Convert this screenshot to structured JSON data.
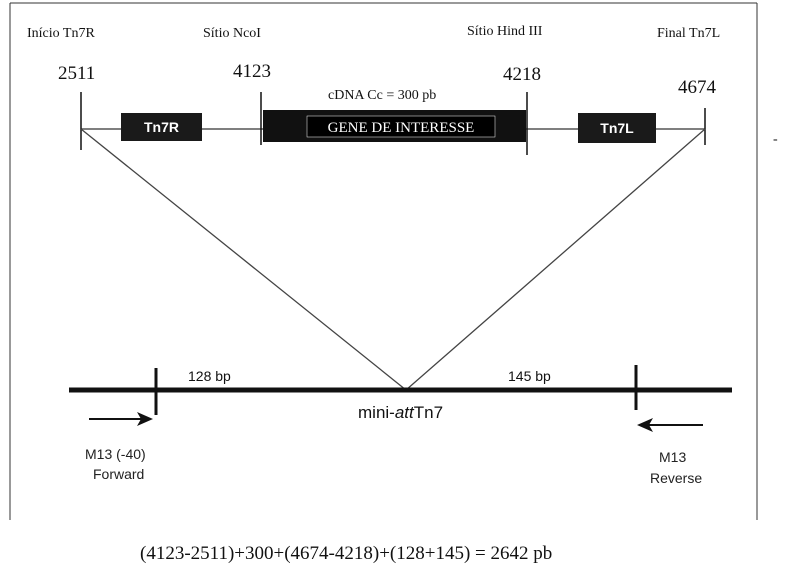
{
  "top_labels": {
    "inicio": "Início Tn7R",
    "ncoi": "Sítio NcoI",
    "hind": "Sítio Hind III",
    "final": "Final Tn7L"
  },
  "positions": {
    "p2511": "2511",
    "p4123": "4123",
    "p4218": "4218",
    "p4674": "4674"
  },
  "cdna_label": "cDNA Cc = 300 pb",
  "boxes": {
    "tn7r": "Tn7R",
    "gene": "GENE DE INTERESSE",
    "tn7l": "Tn7L"
  },
  "bottom": {
    "left_bp": "128 bp",
    "right_bp": "145 bp",
    "site_prefix": "mini-",
    "site_italic": "att",
    "site_suffix": "Tn7",
    "forward_line1": "M13 (-40)",
    "forward_line2": "Forward",
    "reverse_line1": "M13",
    "reverse_line2": "Reverse"
  },
  "formula": "(4123-2511)+300+(4674-4218)+(128+145) = 2642 pb",
  "stray_mark": "-"
}
